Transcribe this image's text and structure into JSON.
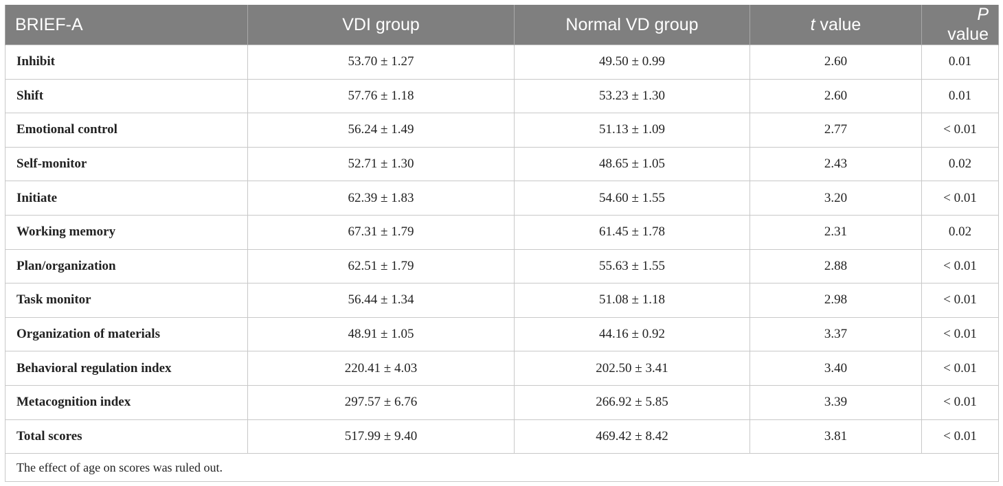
{
  "table": {
    "headers": {
      "col1": "BRIEF-A",
      "col2": "VDI group",
      "col3": "Normal VD group",
      "col4_italic": "t",
      "col4_rest": " value",
      "col5_italic": "P",
      "col5_rest": " value"
    },
    "rows": [
      {
        "label": "Inhibit",
        "vdi": "53.70 ± 1.27",
        "normal": "49.50 ± 0.99",
        "t": "2.60",
        "p": "0.01"
      },
      {
        "label": "Shift",
        "vdi": "57.76 ± 1.18",
        "normal": "53.23 ± 1.30",
        "t": "2.60",
        "p": "0.01"
      },
      {
        "label": "Emotional control",
        "vdi": "56.24 ± 1.49",
        "normal": "51.13 ± 1.09",
        "t": "2.77",
        "p": "< 0.01"
      },
      {
        "label": "Self-monitor",
        "vdi": "52.71 ± 1.30",
        "normal": "48.65 ± 1.05",
        "t": "2.43",
        "p": "0.02"
      },
      {
        "label": "Initiate",
        "vdi": "62.39 ± 1.83",
        "normal": "54.60 ± 1.55",
        "t": "3.20",
        "p": "< 0.01"
      },
      {
        "label": "Working memory",
        "vdi": "67.31 ± 1.79",
        "normal": "61.45 ± 1.78",
        "t": "2.31",
        "p": "0.02"
      },
      {
        "label": "Plan/organization",
        "vdi": "62.51 ± 1.79",
        "normal": "55.63 ± 1.55",
        "t": "2.88",
        "p": "< 0.01"
      },
      {
        "label": "Task monitor",
        "vdi": "56.44 ± 1.34",
        "normal": "51.08 ± 1.18",
        "t": "2.98",
        "p": "< 0.01"
      },
      {
        "label": "Organization of materials",
        "vdi": "48.91 ± 1.05",
        "normal": "44.16 ± 0.92",
        "t": "3.37",
        "p": "< 0.01"
      },
      {
        "label": "Behavioral regulation index",
        "vdi": "220.41 ± 4.03",
        "normal": "202.50 ± 3.41",
        "t": "3.40",
        "p": "< 0.01"
      },
      {
        "label": "Metacognition index",
        "vdi": "297.57 ± 6.76",
        "normal": "266.92 ± 5.85",
        "t": "3.39",
        "p": "< 0.01"
      },
      {
        "label": "Total scores",
        "vdi": "517.99 ± 9.40",
        "normal": "469.42 ± 8.42",
        "t": "3.81",
        "p": "< 0.01"
      }
    ],
    "footnote": "The effect of age on scores was ruled out."
  },
  "colors": {
    "header_bg": "#7f7f7f",
    "header_text": "#ffffff",
    "border": "#c8c8c8",
    "body_text": "#222222"
  }
}
